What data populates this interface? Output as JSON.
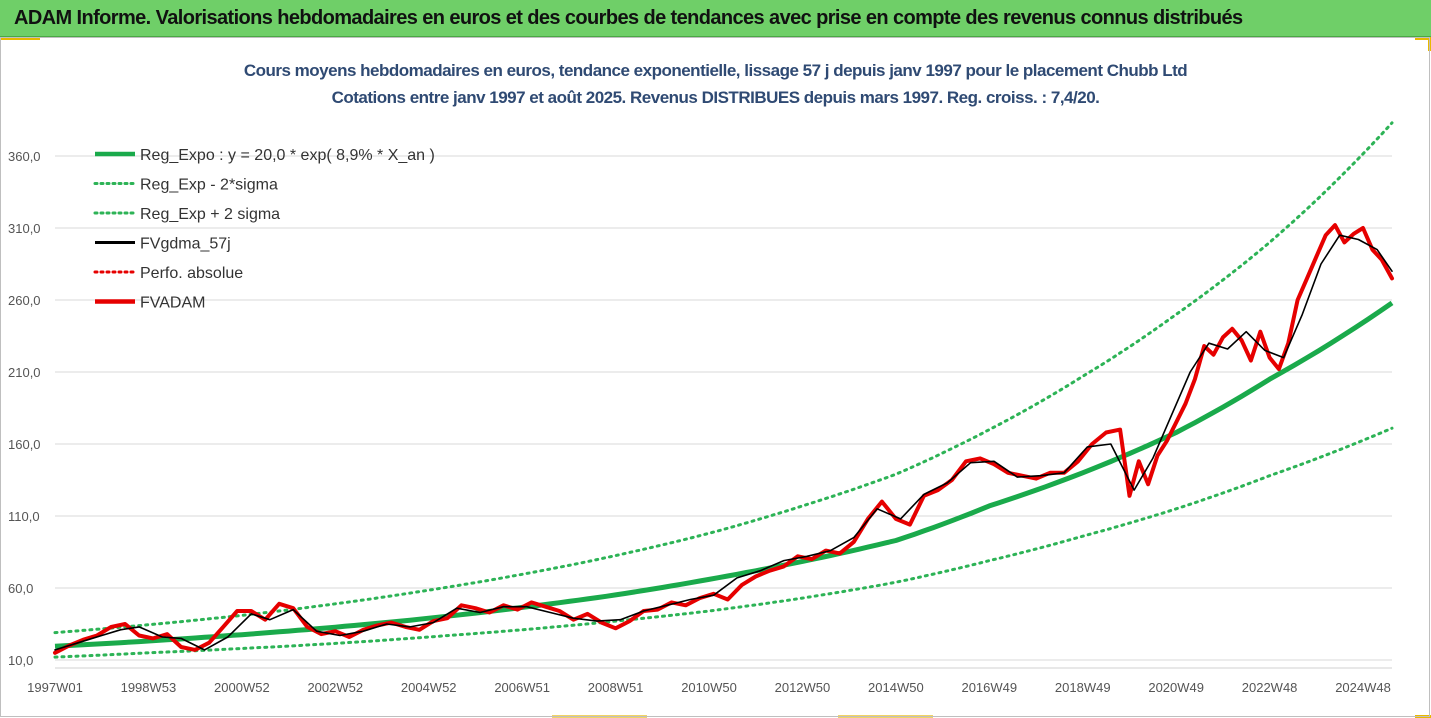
{
  "banner": {
    "title": "ADAM Informe. Valorisations hebdomadaires en euros et des courbes de tendances avec prise en compte des revenus connus distribués"
  },
  "colors": {
    "banner_bg": "#6fcf68",
    "accent_corner": "#e8b800",
    "title_text": "#2f4a73",
    "reg_expo": "#1aaa4b",
    "reg_bands": "#2db356",
    "fvgdma": "#000000",
    "fvadam": "#e60000",
    "perfo": "#e60000"
  },
  "chart_data": {
    "type": "line",
    "title": "Cours moyens hebdomadaires en euros, tendance exponentielle, lissage 57 j depuis janv 1997 pour le placement Chubb Ltd",
    "subtitle": "Cotations entre janv 1997 et août 2025.  Revenus DISTRIBUES depuis mars 1997. Reg. croiss. : 7,4/20.",
    "x_range": [
      1997.0,
      2025.62
    ],
    "ylim": [
      10,
      385
    ],
    "y_ticks": [
      "10,0",
      "60,0",
      "110,0",
      "160,0",
      "210,0",
      "260,0",
      "310,0",
      "360,0"
    ],
    "y_tick_values": [
      10,
      60,
      110,
      160,
      210,
      260,
      310,
      360
    ],
    "x_ticks": [
      "1997W01",
      "1998W53",
      "2000W52",
      "2002W52",
      "2004W52",
      "2006W51",
      "2008W51",
      "2010W50",
      "2012W50",
      "2014W50",
      "2016W49",
      "2018W49",
      "2020W49",
      "2022W48",
      "2024W48"
    ],
    "x_tick_values": [
      1997.0,
      1999.0,
      2001.0,
      2003.0,
      2005.0,
      2007.0,
      2009.0,
      2011.0,
      2013.0,
      2015.0,
      2017.0,
      2019.0,
      2021.0,
      2023.0,
      2025.0
    ],
    "grid": "horizontal",
    "legend_position": "top-left",
    "legend": [
      {
        "label": "Reg_Expo : y = 20,0 * exp( 8,9% *  X_an )",
        "style": "solid-thick",
        "color": "#1aaa4b"
      },
      {
        "label": "Reg_Exp - 2*sigma",
        "style": "dotted",
        "color": "#2db356"
      },
      {
        "label": "Reg_Exp + 2 sigma",
        "style": "dotted",
        "color": "#2db356"
      },
      {
        "label": "FVgdma_57j",
        "style": "solid",
        "color": "#000000"
      },
      {
        "label": "Perfo. absolue",
        "style": "dotted",
        "color": "#e60000"
      },
      {
        "label": "FVADAM",
        "style": "solid-thick",
        "color": "#e60000"
      }
    ],
    "series": [
      {
        "name": "Reg_Expo : y = 20,0 * exp( 8,9% *  X_an )",
        "x": [
          1997.0,
          1999.0,
          2001.0,
          2003.0,
          2005.0,
          2007.0,
          2009.0,
          2011.0,
          2013.0,
          2015.0,
          2017.0,
          2019.0,
          2021.0,
          2023.0,
          2025.62
        ],
        "y": [
          19.5,
          23.2,
          27.6,
          32.8,
          39.0,
          46.5,
          55.2,
          66.0,
          78.5,
          93.0,
          117.0,
          140.0,
          168.0,
          205.0,
          258.0
        ]
      },
      {
        "name": "Reg_Exp - 2*sigma",
        "x": [
          1997.0,
          1999.0,
          2001.0,
          2003.0,
          2005.0,
          2007.0,
          2009.0,
          2011.0,
          2013.0,
          2015.0,
          2017.0,
          2019.0,
          2021.0,
          2023.0,
          2025.62
        ],
        "y": [
          12.0,
          15.0,
          18.0,
          21.5,
          26.0,
          31.0,
          37.0,
          44.0,
          53.0,
          64.0,
          79.0,
          96.0,
          115.0,
          138.0,
          171.0
        ]
      },
      {
        "name": "Reg_Exp + 2 sigma",
        "x": [
          1997.0,
          1999.0,
          2001.0,
          2003.0,
          2005.0,
          2007.0,
          2009.0,
          2011.0,
          2013.0,
          2015.0,
          2017.0,
          2019.0,
          2021.0,
          2023.0,
          2025.62
        ],
        "y": [
          29.0,
          34.5,
          41.0,
          49.0,
          58.5,
          69.5,
          82.5,
          98.0,
          117.0,
          139.0,
          170.0,
          207.0,
          250.0,
          300.0,
          383.0
        ]
      },
      {
        "name": "FVgdma_57j",
        "x": [
          1997.0,
          1997.5,
          1998.0,
          1998.4,
          1998.8,
          1999.3,
          1999.7,
          2000.2,
          2000.7,
          2001.2,
          2001.6,
          2002.1,
          2002.6,
          2003.1,
          2003.6,
          2004.1,
          2004.6,
          2005.1,
          2005.6,
          2006.1,
          2006.6,
          2007.1,
          2007.6,
          2008.1,
          2008.6,
          2009.1,
          2009.6,
          2010.1,
          2010.6,
          2011.1,
          2011.6,
          2012.1,
          2012.6,
          2013.1,
          2013.6,
          2014.1,
          2014.6,
          2015.1,
          2015.6,
          2016.1,
          2016.6,
          2017.1,
          2017.6,
          2018.1,
          2018.6,
          2019.1,
          2019.6,
          2020.1,
          2020.5,
          2020.9,
          2021.3,
          2021.7,
          2022.1,
          2022.5,
          2022.9,
          2023.3,
          2023.7,
          2024.1,
          2024.5,
          2024.9,
          2025.3,
          2025.62
        ],
        "y": [
          17.0,
          22.0,
          27.0,
          31.0,
          33.0,
          26.0,
          25.0,
          17.0,
          26.0,
          42.0,
          38.0,
          45.0,
          30.0,
          27.0,
          30.0,
          35.0,
          33.0,
          36.0,
          46.0,
          43.0,
          47.0,
          47.0,
          43.0,
          39.0,
          37.0,
          38.0,
          44.0,
          48.0,
          52.0,
          55.0,
          67.0,
          72.0,
          79.0,
          82.0,
          86.0,
          95.0,
          115.0,
          108.0,
          125.0,
          133.0,
          147.0,
          148.0,
          137.0,
          138.0,
          140.0,
          158.0,
          160.0,
          128.0,
          150.0,
          180.0,
          210.0,
          230.0,
          226.0,
          238.0,
          225.0,
          220.0,
          250.0,
          285.0,
          305.0,
          302.0,
          295.0,
          280.0
        ]
      },
      {
        "name": "FVADAM",
        "x": [
          1997.0,
          1997.3,
          1997.6,
          1997.9,
          1998.2,
          1998.5,
          1998.8,
          1999.1,
          1999.4,
          1999.7,
          2000.0,
          2000.3,
          2000.6,
          2000.9,
          2001.2,
          2001.5,
          2001.8,
          2002.1,
          2002.4,
          2002.7,
          2003.0,
          2003.3,
          2003.6,
          2003.9,
          2004.2,
          2004.5,
          2004.8,
          2005.1,
          2005.4,
          2005.7,
          2006.0,
          2006.3,
          2006.6,
          2006.9,
          2007.2,
          2007.5,
          2007.8,
          2008.1,
          2008.4,
          2008.7,
          2009.0,
          2009.3,
          2009.6,
          2009.9,
          2010.2,
          2010.5,
          2010.8,
          2011.1,
          2011.4,
          2011.7,
          2012.0,
          2012.3,
          2012.6,
          2012.9,
          2013.2,
          2013.5,
          2013.8,
          2014.1,
          2014.4,
          2014.7,
          2015.0,
          2015.3,
          2015.6,
          2015.9,
          2016.2,
          2016.5,
          2016.8,
          2017.1,
          2017.4,
          2017.7,
          2018.0,
          2018.3,
          2018.6,
          2018.9,
          2019.2,
          2019.5,
          2019.8,
          2020.0,
          2020.2,
          2020.4,
          2020.6,
          2020.8,
          2021.0,
          2021.2,
          2021.4,
          2021.6,
          2021.8,
          2022.0,
          2022.2,
          2022.4,
          2022.6,
          2022.8,
          2023.0,
          2023.2,
          2023.4,
          2023.6,
          2023.8,
          2024.0,
          2024.2,
          2024.4,
          2024.6,
          2024.8,
          2025.0,
          2025.2,
          2025.4,
          2025.62
        ],
        "y": [
          15.0,
          20.0,
          24.0,
          27.0,
          33.0,
          35.0,
          27.0,
          25.0,
          28.0,
          19.0,
          17.0,
          22.0,
          33.0,
          44.0,
          44.0,
          38.0,
          49.0,
          46.0,
          33.0,
          28.0,
          30.0,
          26.0,
          31.0,
          34.0,
          36.0,
          33.0,
          31.0,
          37.0,
          39.0,
          48.0,
          46.0,
          43.0,
          48.0,
          45.0,
          50.0,
          47.0,
          44.0,
          38.0,
          42.0,
          36.0,
          32.0,
          37.0,
          44.0,
          45.0,
          50.0,
          48.0,
          53.0,
          56.0,
          52.0,
          62.0,
          68.0,
          72.0,
          75.0,
          82.0,
          80.0,
          86.0,
          84.0,
          92.0,
          108.0,
          120.0,
          108.0,
          104.0,
          124.0,
          128.0,
          135.0,
          148.0,
          150.0,
          146.0,
          140.0,
          138.0,
          136.0,
          140.0,
          140.0,
          148.0,
          160.0,
          168.0,
          170.0,
          124.0,
          148.0,
          132.0,
          152.0,
          162.0,
          175.0,
          188.0,
          205.0,
          228.0,
          222.0,
          234.0,
          240.0,
          232.0,
          218.0,
          238.0,
          220.0,
          212.0,
          230.0,
          260.0,
          275.0,
          290.0,
          305.0,
          312.0,
          300.0,
          306.0,
          310.0,
          295.0,
          288.0,
          275.0
        ]
      }
    ]
  }
}
